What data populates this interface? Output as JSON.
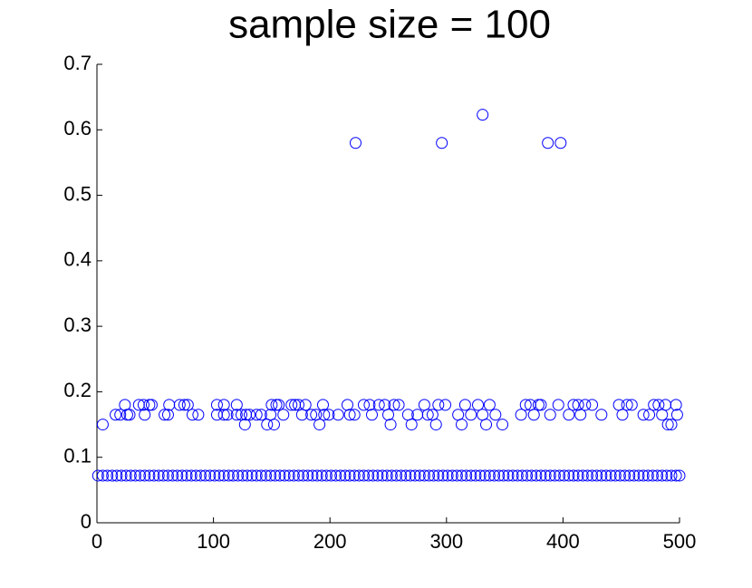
{
  "chart_data": {
    "type": "scatter",
    "title": "sample size = 100",
    "color": "#0000ff",
    "xlim": [
      0,
      500
    ],
    "xticks": [
      0,
      100,
      200,
      300,
      400,
      500
    ],
    "ylim": [
      0,
      0.7
    ],
    "yticks": [
      0,
      0.1,
      0.2,
      0.3,
      0.4,
      0.5,
      0.6,
      0.7
    ],
    "grid": false,
    "x": [
      1,
      5,
      9,
      13,
      17,
      21,
      25,
      29,
      33,
      37,
      41,
      45,
      49,
      53,
      57,
      61,
      65,
      69,
      73,
      77,
      81,
      85,
      89,
      93,
      97,
      101,
      105,
      109,
      113,
      117,
      121,
      125,
      129,
      133,
      137,
      141,
      145,
      149,
      153,
      157,
      161,
      165,
      169,
      173,
      177,
      181,
      185,
      189,
      193,
      197,
      201,
      205,
      209,
      213,
      217,
      221,
      225,
      229,
      233,
      237,
      241,
      245,
      249,
      253,
      257,
      261,
      265,
      269,
      273,
      277,
      281,
      285,
      289,
      293,
      297,
      301,
      305,
      309,
      313,
      317,
      321,
      325,
      329,
      333,
      337,
      341,
      345,
      349,
      353,
      357,
      361,
      365,
      369,
      373,
      377,
      381,
      385,
      389,
      393,
      397,
      401,
      405,
      409,
      413,
      417,
      421,
      425,
      429,
      433,
      437,
      441,
      445,
      449,
      453,
      457,
      461,
      465,
      469,
      473,
      477,
      481,
      485,
      489,
      493,
      497,
      500,
      5,
      16,
      20,
      24,
      26,
      28,
      36,
      40,
      41,
      45,
      47,
      58,
      61,
      62,
      71,
      75,
      78,
      82,
      87,
      103,
      103,
      109,
      109,
      112,
      120,
      120,
      124,
      127,
      128,
      131,
      137,
      141,
      146,
      149,
      150,
      152,
      154,
      156,
      160,
      167,
      170,
      173,
      176,
      179,
      184,
      188,
      191,
      194,
      195,
      199,
      207,
      215,
      217,
      221,
      222,
      229,
      234,
      236,
      242,
      247,
      250,
      252,
      255,
      259,
      267,
      270,
      275,
      281,
      284,
      288,
      291,
      293,
      296,
      299,
      310,
      313,
      316,
      321,
      327,
      331,
      331,
      334,
      337,
      342,
      348,
      364,
      368,
      372,
      375,
      379,
      381,
      387,
      389,
      396,
      398,
      405,
      409,
      413,
      415,
      419,
      425,
      433,
      448,
      451,
      455,
      459,
      469,
      474,
      478,
      482,
      485,
      488,
      490,
      493,
      497,
      498
    ],
    "y": [
      0.072,
      0.072,
      0.072,
      0.072,
      0.072,
      0.072,
      0.072,
      0.072,
      0.072,
      0.072,
      0.072,
      0.072,
      0.072,
      0.072,
      0.072,
      0.072,
      0.072,
      0.072,
      0.072,
      0.072,
      0.072,
      0.072,
      0.072,
      0.072,
      0.072,
      0.072,
      0.072,
      0.072,
      0.072,
      0.072,
      0.072,
      0.072,
      0.072,
      0.072,
      0.072,
      0.072,
      0.072,
      0.072,
      0.072,
      0.072,
      0.072,
      0.072,
      0.072,
      0.072,
      0.072,
      0.072,
      0.072,
      0.072,
      0.072,
      0.072,
      0.072,
      0.072,
      0.072,
      0.072,
      0.072,
      0.072,
      0.072,
      0.072,
      0.072,
      0.072,
      0.072,
      0.072,
      0.072,
      0.072,
      0.072,
      0.072,
      0.072,
      0.072,
      0.072,
      0.072,
      0.072,
      0.072,
      0.072,
      0.072,
      0.072,
      0.072,
      0.072,
      0.072,
      0.072,
      0.072,
      0.072,
      0.072,
      0.072,
      0.072,
      0.072,
      0.072,
      0.072,
      0.072,
      0.072,
      0.072,
      0.072,
      0.072,
      0.072,
      0.072,
      0.072,
      0.072,
      0.072,
      0.072,
      0.072,
      0.072,
      0.072,
      0.072,
      0.072,
      0.072,
      0.072,
      0.072,
      0.072,
      0.072,
      0.072,
      0.072,
      0.072,
      0.072,
      0.072,
      0.072,
      0.072,
      0.072,
      0.072,
      0.072,
      0.072,
      0.072,
      0.072,
      0.072,
      0.072,
      0.072,
      0.072,
      0.072,
      0.15,
      0.165,
      0.165,
      0.18,
      0.165,
      0.165,
      0.18,
      0.18,
      0.165,
      0.18,
      0.18,
      0.165,
      0.165,
      0.18,
      0.18,
      0.18,
      0.18,
      0.165,
      0.165,
      0.18,
      0.165,
      0.18,
      0.165,
      0.165,
      0.18,
      0.165,
      0.165,
      0.15,
      0.165,
      0.165,
      0.165,
      0.165,
      0.15,
      0.165,
      0.18,
      0.15,
      0.18,
      0.18,
      0.165,
      0.18,
      0.18,
      0.18,
      0.165,
      0.18,
      0.165,
      0.165,
      0.15,
      0.18,
      0.165,
      0.165,
      0.165,
      0.18,
      0.165,
      0.165,
      0.58,
      0.18,
      0.18,
      0.165,
      0.18,
      0.18,
      0.165,
      0.15,
      0.18,
      0.18,
      0.165,
      0.15,
      0.165,
      0.18,
      0.165,
      0.165,
      0.15,
      0.18,
      0.58,
      0.18,
      0.165,
      0.15,
      0.18,
      0.165,
      0.18,
      0.623,
      0.165,
      0.15,
      0.18,
      0.165,
      0.15,
      0.165,
      0.18,
      0.18,
      0.165,
      0.18,
      0.18,
      0.58,
      0.165,
      0.18,
      0.58,
      0.165,
      0.18,
      0.18,
      0.165,
      0.18,
      0.18,
      0.165,
      0.18,
      0.165,
      0.18,
      0.18,
      0.165,
      0.165,
      0.18,
      0.18,
      0.165,
      0.18,
      0.15,
      0.15,
      0.18,
      0.165
    ]
  }
}
